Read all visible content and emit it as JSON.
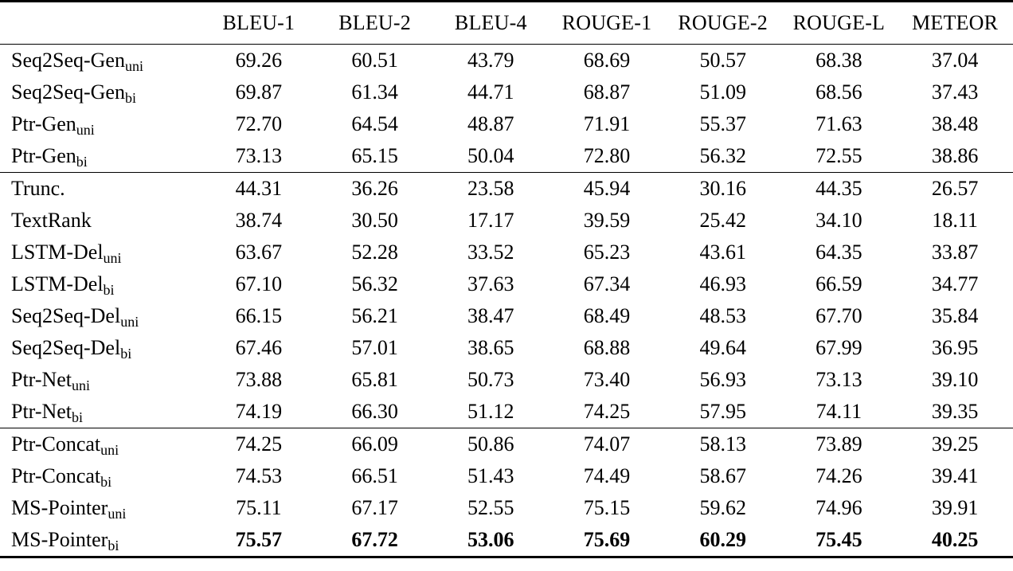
{
  "table": {
    "columns": [
      "BLEU-1",
      "BLEU-2",
      "BLEU-4",
      "ROUGE-1",
      "ROUGE-2",
      "ROUGE-L",
      "METEOR"
    ],
    "corner_label": "",
    "groups": [
      {
        "rows": [
          {
            "base": "Seq2Seq-Gen",
            "sub": "uni",
            "bold": false,
            "values": [
              "69.26",
              "60.51",
              "43.79",
              "68.69",
              "50.57",
              "68.38",
              "37.04"
            ]
          },
          {
            "base": "Seq2Seq-Gen",
            "sub": "bi",
            "bold": false,
            "values": [
              "69.87",
              "61.34",
              "44.71",
              "68.87",
              "51.09",
              "68.56",
              "37.43"
            ]
          },
          {
            "base": "Ptr-Gen",
            "sub": "uni",
            "bold": false,
            "values": [
              "72.70",
              "64.54",
              "48.87",
              "71.91",
              "55.37",
              "71.63",
              "38.48"
            ]
          },
          {
            "base": "Ptr-Gen",
            "sub": "bi",
            "bold": false,
            "values": [
              "73.13",
              "65.15",
              "50.04",
              "72.80",
              "56.32",
              "72.55",
              "38.86"
            ]
          }
        ]
      },
      {
        "rows": [
          {
            "base": "Trunc.",
            "sub": "",
            "bold": false,
            "values": [
              "44.31",
              "36.26",
              "23.58",
              "45.94",
              "30.16",
              "44.35",
              "26.57"
            ]
          },
          {
            "base": "TextRank",
            "sub": "",
            "bold": false,
            "values": [
              "38.74",
              "30.50",
              "17.17",
              "39.59",
              "25.42",
              "34.10",
              "18.11"
            ]
          },
          {
            "base": "LSTM-Del",
            "sub": "uni",
            "bold": false,
            "values": [
              "63.67",
              "52.28",
              "33.52",
              "65.23",
              "43.61",
              "64.35",
              "33.87"
            ]
          },
          {
            "base": "LSTM-Del",
            "sub": "bi",
            "bold": false,
            "values": [
              "67.10",
              "56.32",
              "37.63",
              "67.34",
              "46.93",
              "66.59",
              "34.77"
            ]
          },
          {
            "base": "Seq2Seq-Del",
            "sub": "uni",
            "bold": false,
            "values": [
              "66.15",
              "56.21",
              "38.47",
              "68.49",
              "48.53",
              "67.70",
              "35.84"
            ]
          },
          {
            "base": "Seq2Seq-Del",
            "sub": "bi",
            "bold": false,
            "values": [
              "67.46",
              "57.01",
              "38.65",
              "68.88",
              "49.64",
              "67.99",
              "36.95"
            ]
          },
          {
            "base": "Ptr-Net",
            "sub": "uni",
            "bold": false,
            "values": [
              "73.88",
              "65.81",
              "50.73",
              "73.40",
              "56.93",
              "73.13",
              "39.10"
            ]
          },
          {
            "base": "Ptr-Net",
            "sub": "bi",
            "bold": false,
            "values": [
              "74.19",
              "66.30",
              "51.12",
              "74.25",
              "57.95",
              "74.11",
              "39.35"
            ]
          }
        ]
      },
      {
        "rows": [
          {
            "base": "Ptr-Concat",
            "sub": "uni",
            "bold": false,
            "values": [
              "74.25",
              "66.09",
              "50.86",
              "74.07",
              "58.13",
              "73.89",
              "39.25"
            ]
          },
          {
            "base": "Ptr-Concat",
            "sub": "bi",
            "bold": false,
            "values": [
              "74.53",
              "66.51",
              "51.43",
              "74.49",
              "58.67",
              "74.26",
              "39.41"
            ]
          },
          {
            "base": "MS-Pointer",
            "sub": "uni",
            "bold": false,
            "values": [
              "75.11",
              "67.17",
              "52.55",
              "75.15",
              "59.62",
              "74.96",
              "39.91"
            ]
          },
          {
            "base": "MS-Pointer",
            "sub": "bi",
            "bold": true,
            "values": [
              "75.57",
              "67.72",
              "53.06",
              "75.69",
              "60.29",
              "75.45",
              "40.25"
            ]
          }
        ]
      }
    ]
  }
}
